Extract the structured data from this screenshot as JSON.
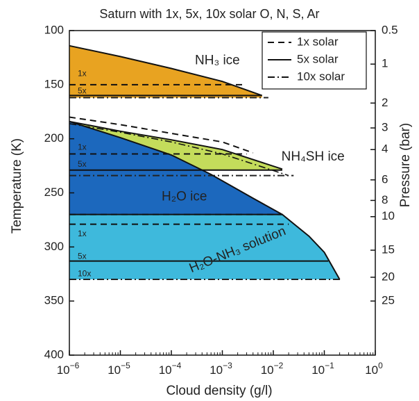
{
  "chart_data": {
    "type": "area",
    "title": "Saturn with 1x, 5x, 10x solar O, N, S, Ar",
    "xlabel": "Cloud density (g/l)",
    "ylabel": "Temperature (K)",
    "y2label": "Pressure (bar)",
    "xscale": "log",
    "xlim": [
      1e-06,
      1
    ],
    "ylim": [
      100,
      400
    ],
    "y_inverted": true,
    "x_ticks": [
      {
        "value": 1e-06,
        "base": "10",
        "exp": "−6"
      },
      {
        "value": 1e-05,
        "base": "10",
        "exp": "−5"
      },
      {
        "value": 0.0001,
        "base": "10",
        "exp": "−4"
      },
      {
        "value": 0.001,
        "base": "10",
        "exp": "−3"
      },
      {
        "value": 0.01,
        "base": "10",
        "exp": "−2"
      },
      {
        "value": 0.1,
        "base": "10",
        "exp": "−1"
      },
      {
        "value": 1,
        "base": "10",
        "exp": "0"
      }
    ],
    "y_ticks": [
      100,
      150,
      200,
      250,
      300,
      350,
      400
    ],
    "pressure_ticks": [
      {
        "label": "0.5",
        "T": 100
      },
      {
        "label": "1",
        "T": 131
      },
      {
        "label": "2",
        "T": 167
      },
      {
        "label": "3",
        "T": 190
      },
      {
        "label": "4",
        "T": 210
      },
      {
        "label": "6",
        "T": 238
      },
      {
        "label": "8",
        "T": 257
      },
      {
        "label": "10",
        "T": 272
      },
      {
        "label": "15",
        "T": 303
      },
      {
        "label": "20",
        "T": 328
      },
      {
        "label": "25",
        "T": 350
      }
    ],
    "legend": {
      "position": "top-right",
      "entries": [
        {
          "label": "1x solar",
          "style": "dashed"
        },
        {
          "label": "5x solar",
          "style": "solid"
        },
        {
          "label": "10x solar",
          "style": "dashdot"
        }
      ]
    },
    "layers": [
      {
        "name": "NH3 ice",
        "color": "#e8a321",
        "curve": [
          [
            1e-06,
            114
          ],
          [
            1e-05,
            124
          ],
          [
            0.0001,
            135
          ],
          [
            0.001,
            147
          ],
          [
            0.006,
            160
          ]
        ],
        "bottom_T": 162,
        "case_lines": [
          {
            "case": "1x",
            "T": 150,
            "x_end": 0.0025,
            "style": "dashed"
          },
          {
            "case": "5x",
            "T": 160,
            "x_end": 0.006,
            "style": "solid"
          },
          {
            "case": "10x",
            "T": 162,
            "x_end": 0.008,
            "style": "dashdot"
          }
        ]
      },
      {
        "name": "NH4SH ice",
        "color": "#c4dc5b",
        "curve": [
          [
            1e-06,
            184
          ],
          [
            1e-05,
            193
          ],
          [
            0.0001,
            201
          ],
          [
            0.001,
            210
          ],
          [
            0.015,
            228
          ]
        ],
        "bottom_T": 229,
        "upper_dashed": [
          [
            1e-06,
            180
          ],
          [
            1e-05,
            187
          ],
          [
            0.0001,
            195
          ],
          [
            0.001,
            203
          ],
          [
            0.004,
            213
          ]
        ],
        "upper_dashdot": [
          [
            1e-06,
            186
          ],
          [
            1e-05,
            194
          ],
          [
            0.0001,
            203
          ],
          [
            0.001,
            214
          ],
          [
            0.02,
            234
          ]
        ],
        "case_lines": [
          {
            "case": "1x",
            "T": 214,
            "x_end": 0.003,
            "style": "dashed"
          },
          {
            "case": "5x",
            "T": 229,
            "x_end": 0.015,
            "style": "solid"
          },
          {
            "case": "10x",
            "T": 234,
            "x_end": 0.025,
            "style": "dashdot"
          }
        ]
      },
      {
        "name": "H2O ice",
        "color": "#1c68bd",
        "curve": [
          [
            1e-06,
            184
          ],
          [
            1e-05,
            199
          ],
          [
            0.0001,
            215
          ],
          [
            0.0006,
            233
          ],
          [
            0.004,
            255
          ],
          [
            0.015,
            270
          ]
        ],
        "bottom_T": 270,
        "case_lines": [
          {
            "case": "1x",
            "T": 270,
            "x_end": 0.015,
            "style": "dashed"
          }
        ]
      },
      {
        "name": "H2O-NH3 solution",
        "color": "#3eb9dc",
        "curve": [
          [
            1e-06,
            270
          ],
          [
            0.015,
            270
          ],
          [
            0.05,
            290
          ],
          [
            0.1,
            305
          ],
          [
            0.2,
            330
          ]
        ],
        "bottom_T": 330,
        "case_lines": [
          {
            "case": "1x",
            "T": 279,
            "x_end": 0.02,
            "style": "dashed"
          },
          {
            "case": "5x",
            "T": 313,
            "x_end": 0.12,
            "style": "solid"
          },
          {
            "case": "10x",
            "T": 330,
            "x_end": 0.22,
            "style": "dashdot"
          }
        ]
      }
    ],
    "annotations": [
      {
        "text": "NH₃ ice",
        "x": 0.0008,
        "T": 128
      },
      {
        "text": "NH₄SH ice",
        "x": 0.06,
        "T": 217
      },
      {
        "text": "H₂O ice",
        "x": 0.00018,
        "T": 254
      },
      {
        "text": "H₂O-NH₃ solution",
        "x": 0.002,
        "T": 303,
        "rotate": -22
      }
    ],
    "case_labels": [
      {
        "text": "1x",
        "T": 140
      },
      {
        "text": "5x",
        "T": 156
      },
      {
        "text": "1x",
        "T": 208
      },
      {
        "text": "5x",
        "T": 224
      },
      {
        "text": "1x",
        "T": 288
      },
      {
        "text": "5x",
        "T": 309
      },
      {
        "text": "10x",
        "T": 325
      }
    ]
  }
}
